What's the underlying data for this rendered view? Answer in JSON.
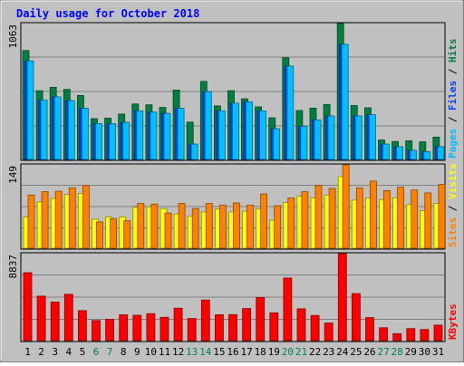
{
  "chart_data": [
    {
      "type": "bar",
      "title": "Daily usage for October 2018",
      "categories": [
        "1",
        "2",
        "3",
        "4",
        "5",
        "6",
        "7",
        "8",
        "9",
        "10",
        "11",
        "12",
        "13",
        "14",
        "15",
        "16",
        "17",
        "18",
        "19",
        "20",
        "21",
        "22",
        "23",
        "24",
        "25",
        "26",
        "27",
        "28",
        "29",
        "30",
        "31"
      ],
      "weekend_days": [
        6,
        7,
        13,
        14,
        20,
        21,
        27,
        28
      ],
      "y_max_label": "1063",
      "ylim": [
        0,
        1063
      ],
      "grid": true,
      "legend_vertical": [
        {
          "text": "Pages",
          "color": "#00c0ff"
        },
        {
          "text": " / ",
          "color": "#000000"
        },
        {
          "text": "Files",
          "color": "#0040ff"
        },
        {
          "text": " / ",
          "color": "#000000"
        },
        {
          "text": "Hits",
          "color": "#008040"
        }
      ],
      "series": [
        {
          "name": "Hits",
          "color": "#008040",
          "values": [
            852,
            537,
            564,
            548,
            500,
            319,
            323,
            355,
            434,
            427,
            407,
            543,
            292,
            610,
            419,
            538,
            474,
            411,
            325,
            796,
            383,
            401,
            430,
            1063,
            422,
            404,
            152,
            140,
            146,
            138,
            174
          ]
        },
        {
          "name": "Files",
          "color": "#0040ff",
          "values": [
            770,
            465,
            490,
            460,
            400,
            280,
            280,
            290,
            380,
            370,
            360,
            400,
            120,
            530,
            380,
            440,
            450,
            380,
            240,
            730,
            260,
            310,
            340,
            900,
            340,
            350,
            120,
            100,
            70,
            60,
            100
          ]
        },
        {
          "name": "Pages",
          "color": "#00c0ff",
          "values": [
            770,
            465,
            490,
            460,
            400,
            280,
            280,
            290,
            380,
            370,
            360,
            400,
            120,
            530,
            380,
            440,
            450,
            380,
            240,
            730,
            260,
            310,
            340,
            900,
            340,
            350,
            120,
            100,
            70,
            60,
            100
          ]
        }
      ]
    },
    {
      "type": "bar",
      "categories": [
        "1",
        "2",
        "3",
        "4",
        "5",
        "6",
        "7",
        "8",
        "9",
        "10",
        "11",
        "12",
        "13",
        "14",
        "15",
        "16",
        "17",
        "18",
        "19",
        "20",
        "21",
        "22",
        "23",
        "24",
        "25",
        "26",
        "27",
        "28",
        "29",
        "30",
        "31"
      ],
      "y_max_label": "149",
      "ylim": [
        0,
        149
      ],
      "grid": true,
      "legend_vertical": [
        {
          "text": "Sites",
          "color": "#ff8000"
        },
        {
          "text": " / ",
          "color": "#000000"
        },
        {
          "text": "Visits",
          "color": "#ffff00"
        }
      ],
      "series": [
        {
          "name": "Visits",
          "color": "#ffff00",
          "values": [
            56,
            83,
            89,
            96,
            98,
            52,
            56,
            56,
            73,
            74,
            71,
            61,
            57,
            65,
            70,
            65,
            66,
            70,
            50,
            82,
            93,
            90,
            95,
            128,
            86,
            90,
            87,
            90,
            78,
            67,
            80
          ]
        },
        {
          "name": "Sites",
          "color": "#ff8000",
          "values": [
            95,
            101,
            102,
            108,
            112,
            47,
            53,
            49,
            80,
            79,
            63,
            80,
            71,
            80,
            77,
            81,
            77,
            97,
            76,
            90,
            101,
            112,
            107,
            149,
            108,
            120,
            103,
            109,
            104,
            99,
            114
          ]
        }
      ]
    },
    {
      "type": "bar",
      "categories": [
        "1",
        "2",
        "3",
        "4",
        "5",
        "6",
        "7",
        "8",
        "9",
        "10",
        "11",
        "12",
        "13",
        "14",
        "15",
        "16",
        "17",
        "18",
        "19",
        "20",
        "21",
        "22",
        "23",
        "24",
        "25",
        "26",
        "27",
        "28",
        "29",
        "30",
        "31"
      ],
      "y_max_label": "8837",
      "ylim": [
        0,
        8837
      ],
      "grid": true,
      "legend_vertical": [
        {
          "text": "KBytes",
          "color": "#ff0000"
        }
      ],
      "series": [
        {
          "name": "KBytes",
          "color": "#ff0000",
          "values": [
            6900,
            4520,
            3920,
            4700,
            3050,
            2040,
            2170,
            2620,
            2580,
            2740,
            2370,
            3300,
            2250,
            4120,
            2630,
            2640,
            3260,
            4370,
            2830,
            6360,
            3230,
            2560,
            1790,
            8837,
            4780,
            2340,
            1310,
            710,
            1220,
            1130,
            1570
          ]
        }
      ]
    }
  ]
}
